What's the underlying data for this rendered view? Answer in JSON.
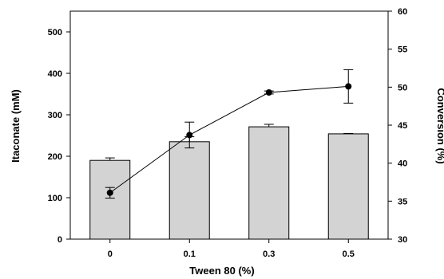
{
  "chart_data": {
    "type": "bar",
    "categories": [
      "0",
      "0.1",
      "0.3",
      "0.5"
    ],
    "xlabel": "Tween 80 (%)",
    "ylabel": "Itaconate (mM)",
    "y2label": "Conversion (%)",
    "ylim": [
      0,
      550
    ],
    "y2lim": [
      30,
      60
    ],
    "yticks": [
      0,
      100,
      200,
      300,
      400,
      500
    ],
    "y2ticks": [
      30,
      35,
      40,
      45,
      50,
      55,
      60
    ],
    "grid": false,
    "bar_color": "#d3d3d3",
    "series": [
      {
        "type": "bar",
        "axis": "left",
        "values": [
          190,
          235,
          271,
          254
        ],
        "errors": [
          6,
          12,
          6,
          1
        ]
      },
      {
        "type": "line",
        "axis": "right",
        "values": [
          36.1,
          43.7,
          49.3,
          50.1
        ],
        "errors": [
          0.7,
          1.7,
          0.2,
          2.2
        ]
      }
    ]
  }
}
